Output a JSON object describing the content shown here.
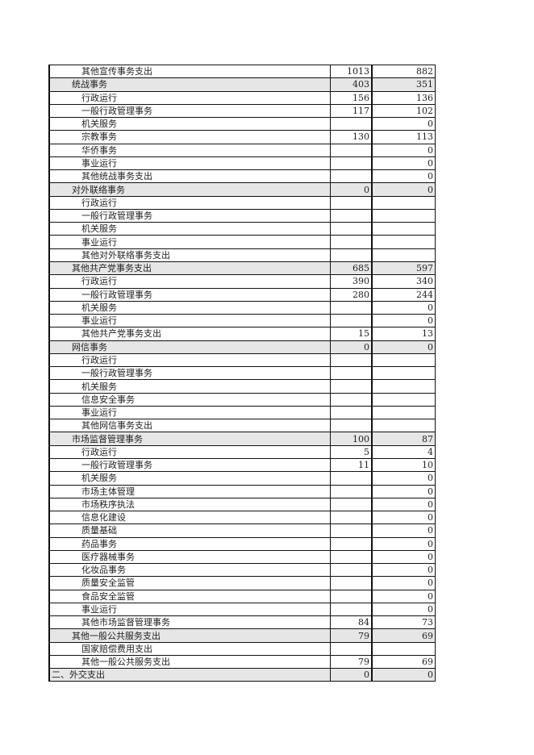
{
  "rows": [
    {
      "label": "其他宣传事务支出",
      "level": 2,
      "a": "1013",
      "b": "882"
    },
    {
      "label": "统战事务",
      "level": 1,
      "a": "403",
      "b": "351",
      "cat": true
    },
    {
      "label": "行政运行",
      "level": 2,
      "a": "156",
      "b": "136"
    },
    {
      "label": "一般行政管理事务",
      "level": 2,
      "a": "117",
      "b": "102"
    },
    {
      "label": "机关服务",
      "level": 2,
      "a": "",
      "b": "0"
    },
    {
      "label": "宗教事务",
      "level": 2,
      "a": "130",
      "b": "113"
    },
    {
      "label": "华侨事务",
      "level": 2,
      "a": "",
      "b": "0"
    },
    {
      "label": "事业运行",
      "level": 2,
      "a": "",
      "b": "0"
    },
    {
      "label": "其他统战事务支出",
      "level": 2,
      "a": "",
      "b": "0"
    },
    {
      "label": "对外联络事务",
      "level": 1,
      "a": "0",
      "b": "0",
      "cat": true
    },
    {
      "label": "行政运行",
      "level": 2,
      "a": "",
      "b": ""
    },
    {
      "label": "一般行政管理事务",
      "level": 2,
      "a": "",
      "b": ""
    },
    {
      "label": "机关服务",
      "level": 2,
      "a": "",
      "b": ""
    },
    {
      "label": "事业运行",
      "level": 2,
      "a": "",
      "b": ""
    },
    {
      "label": "其他对外联络事务支出",
      "level": 2,
      "a": "",
      "b": ""
    },
    {
      "label": "其他共产党事务支出",
      "level": 1,
      "a": "685",
      "b": "597",
      "cat": true
    },
    {
      "label": "行政运行",
      "level": 2,
      "a": "390",
      "b": "340"
    },
    {
      "label": "一般行政管理事务",
      "level": 2,
      "a": "280",
      "b": "244"
    },
    {
      "label": "机关服务",
      "level": 2,
      "a": "",
      "b": "0"
    },
    {
      "label": "事业运行",
      "level": 2,
      "a": "",
      "b": "0"
    },
    {
      "label": "其他共产党事务支出",
      "level": 2,
      "a": "15",
      "b": "13"
    },
    {
      "label": "网信事务",
      "level": 1,
      "a": "0",
      "b": "0",
      "cat": true
    },
    {
      "label": "行政运行",
      "level": 2,
      "a": "",
      "b": ""
    },
    {
      "label": "一般行政管理事务",
      "level": 2,
      "a": "",
      "b": ""
    },
    {
      "label": "机关服务",
      "level": 2,
      "a": "",
      "b": ""
    },
    {
      "label": "信息安全事务",
      "level": 2,
      "a": "",
      "b": ""
    },
    {
      "label": "事业运行",
      "level": 2,
      "a": "",
      "b": ""
    },
    {
      "label": "其他网信事务支出",
      "level": 2,
      "a": "",
      "b": ""
    },
    {
      "label": "市场监督管理事务",
      "level": 1,
      "a": "100",
      "b": "87",
      "cat": true
    },
    {
      "label": "行政运行",
      "level": 2,
      "a": "5",
      "b": "4"
    },
    {
      "label": "一般行政管理事务",
      "level": 2,
      "a": "11",
      "b": "10"
    },
    {
      "label": "机关服务",
      "level": 2,
      "a": "",
      "b": "0"
    },
    {
      "label": "市场主体管理",
      "level": 2,
      "a": "",
      "b": "0"
    },
    {
      "label": "市场秩序执法",
      "level": 2,
      "a": "",
      "b": "0"
    },
    {
      "label": "信息化建设",
      "level": 2,
      "a": "",
      "b": "0"
    },
    {
      "label": "质量基础",
      "level": 2,
      "a": "",
      "b": "0"
    },
    {
      "label": "药品事务",
      "level": 2,
      "a": "",
      "b": "0"
    },
    {
      "label": "医疗器械事务",
      "level": 2,
      "a": "",
      "b": "0"
    },
    {
      "label": "化妆品事务",
      "level": 2,
      "a": "",
      "b": "0"
    },
    {
      "label": "质量安全监管",
      "level": 2,
      "a": "",
      "b": "0"
    },
    {
      "label": "食品安全监管",
      "level": 2,
      "a": "",
      "b": "0"
    },
    {
      "label": "事业运行",
      "level": 2,
      "a": "",
      "b": "0"
    },
    {
      "label": "其他市场监督管理事务",
      "level": 2,
      "a": "84",
      "b": "73"
    },
    {
      "label": "其他一般公共服务支出",
      "level": 1,
      "a": "79",
      "b": "69",
      "cat": true
    },
    {
      "label": "国家赔偿费用支出",
      "level": 2,
      "a": "",
      "b": ""
    },
    {
      "label": "其他一般公共服务支出",
      "level": 2,
      "a": "79",
      "b": "69"
    },
    {
      "label": "二、外交支出",
      "level": 0,
      "a": "0",
      "b": "0",
      "cat": true
    }
  ],
  "colors": {
    "category_row_bg": "#e6e6e6",
    "border": "#111111"
  }
}
